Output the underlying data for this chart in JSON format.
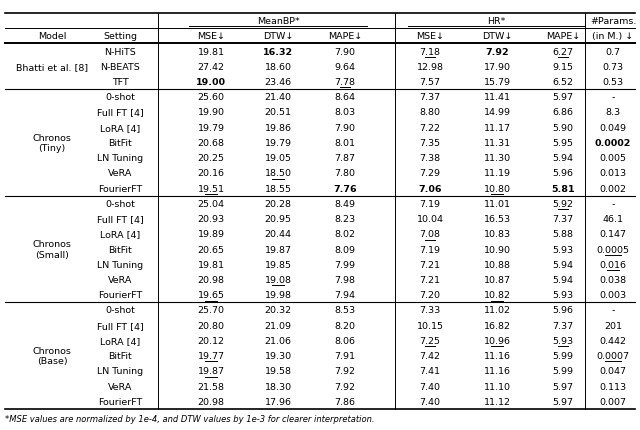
{
  "footnote": "*MSE values are normalized by 1e-4, and DTW values by 1e-3 for clearer interpretation.",
  "header_row1_labels": [
    "MeanBP*",
    "HR*",
    "#Params."
  ],
  "header_row2": [
    "Model",
    "Setting",
    "MSE↓",
    "DTW↓",
    "MAPE↓",
    "MSE↓",
    "DTW↓",
    "MAPE↓",
    "(in M.) ↓"
  ],
  "groups": [
    {
      "model": "Bhatti et al. [8]",
      "rows": [
        {
          "setting": "N-HiTS",
          "vals": [
            "19.81",
            "16.32",
            "7.90",
            "7.18",
            "7.92",
            "6.27",
            "0.7"
          ]
        },
        {
          "setting": "N-BEATS",
          "vals": [
            "27.42",
            "18.60",
            "9.64",
            "12.98",
            "17.90",
            "9.15",
            "0.73"
          ]
        },
        {
          "setting": "TFT",
          "vals": [
            "19.00",
            "23.46",
            "7.78",
            "7.57",
            "15.79",
            "6.52",
            "0.53"
          ]
        }
      ],
      "bold": [
        [
          false,
          true,
          false,
          false,
          true,
          false,
          false
        ],
        [
          false,
          false,
          false,
          false,
          false,
          false,
          false
        ],
        [
          true,
          false,
          false,
          false,
          false,
          false,
          false
        ]
      ],
      "underline": [
        [
          false,
          false,
          false,
          true,
          false,
          true,
          false
        ],
        [
          false,
          false,
          false,
          false,
          false,
          false,
          false
        ],
        [
          false,
          false,
          true,
          false,
          false,
          false,
          false
        ]
      ]
    },
    {
      "model": "Chronos\n(Tiny)",
      "rows": [
        {
          "setting": "0-shot",
          "vals": [
            "25.60",
            "21.40",
            "8.64",
            "7.37",
            "11.41",
            "5.97",
            "-"
          ]
        },
        {
          "setting": "Full FT [4]",
          "vals": [
            "19.90",
            "20.51",
            "8.03",
            "8.80",
            "14.99",
            "6.86",
            "8.3"
          ]
        },
        {
          "setting": "LoRA [4]",
          "vals": [
            "19.79",
            "19.86",
            "7.90",
            "7.22",
            "11.17",
            "5.90",
            "0.049"
          ]
        },
        {
          "setting": "BitFit",
          "vals": [
            "20.68",
            "19.79",
            "8.01",
            "7.35",
            "11.31",
            "5.95",
            "0.0002"
          ]
        },
        {
          "setting": "LN Tuning",
          "vals": [
            "20.25",
            "19.05",
            "7.87",
            "7.38",
            "11.30",
            "5.94",
            "0.005"
          ]
        },
        {
          "setting": "VeRA",
          "vals": [
            "20.16",
            "18.50",
            "7.80",
            "7.29",
            "11.19",
            "5.96",
            "0.013"
          ]
        },
        {
          "setting": "FourierFT",
          "vals": [
            "19.51",
            "18.55",
            "7.76",
            "7.06",
            "10.80",
            "5.81",
            "0.002"
          ]
        }
      ],
      "bold": [
        [
          false,
          false,
          false,
          false,
          false,
          false,
          false
        ],
        [
          false,
          false,
          false,
          false,
          false,
          false,
          false
        ],
        [
          false,
          false,
          false,
          false,
          false,
          false,
          false
        ],
        [
          false,
          false,
          false,
          false,
          false,
          false,
          true
        ],
        [
          false,
          false,
          false,
          false,
          false,
          false,
          false
        ],
        [
          false,
          false,
          false,
          false,
          false,
          false,
          false
        ],
        [
          false,
          false,
          true,
          true,
          false,
          true,
          false
        ]
      ],
      "underline": [
        [
          false,
          false,
          false,
          false,
          false,
          false,
          false
        ],
        [
          false,
          false,
          false,
          false,
          false,
          false,
          false
        ],
        [
          false,
          false,
          false,
          false,
          false,
          false,
          false
        ],
        [
          false,
          false,
          false,
          false,
          false,
          false,
          false
        ],
        [
          false,
          false,
          false,
          false,
          false,
          false,
          false
        ],
        [
          false,
          true,
          false,
          false,
          false,
          false,
          false
        ],
        [
          true,
          false,
          false,
          false,
          true,
          false,
          false
        ]
      ]
    },
    {
      "model": "Chronos\n(Small)",
      "rows": [
        {
          "setting": "0-shot",
          "vals": [
            "25.04",
            "20.28",
            "8.49",
            "7.19",
            "11.01",
            "5.92",
            "-"
          ]
        },
        {
          "setting": "Full FT [4]",
          "vals": [
            "20.93",
            "20.95",
            "8.23",
            "10.04",
            "16.53",
            "7.37",
            "46.1"
          ]
        },
        {
          "setting": "LoRA [4]",
          "vals": [
            "19.89",
            "20.44",
            "8.02",
            "7.08",
            "10.83",
            "5.88",
            "0.147"
          ]
        },
        {
          "setting": "BitFit",
          "vals": [
            "20.65",
            "19.87",
            "8.09",
            "7.19",
            "10.90",
            "5.93",
            "0.0005"
          ]
        },
        {
          "setting": "LN Tuning",
          "vals": [
            "19.81",
            "19.85",
            "7.99",
            "7.21",
            "10.88",
            "5.94",
            "0.016"
          ]
        },
        {
          "setting": "VeRA",
          "vals": [
            "20.98",
            "19.08",
            "7.98",
            "7.21",
            "10.87",
            "5.94",
            "0.038"
          ]
        },
        {
          "setting": "FourierFT",
          "vals": [
            "19.65",
            "19.98",
            "7.94",
            "7.20",
            "10.82",
            "5.93",
            "0.003"
          ]
        }
      ],
      "bold": [
        [
          false,
          false,
          false,
          false,
          false,
          false,
          false
        ],
        [
          false,
          false,
          false,
          false,
          false,
          false,
          false
        ],
        [
          false,
          false,
          false,
          false,
          false,
          false,
          false
        ],
        [
          false,
          false,
          false,
          false,
          false,
          false,
          false
        ],
        [
          false,
          false,
          false,
          false,
          false,
          false,
          false
        ],
        [
          false,
          false,
          false,
          false,
          false,
          false,
          false
        ],
        [
          false,
          false,
          false,
          false,
          false,
          false,
          false
        ]
      ],
      "underline": [
        [
          false,
          false,
          false,
          false,
          false,
          true,
          false
        ],
        [
          false,
          false,
          false,
          false,
          false,
          false,
          false
        ],
        [
          false,
          false,
          false,
          true,
          false,
          false,
          false
        ],
        [
          false,
          false,
          false,
          false,
          false,
          false,
          true
        ],
        [
          false,
          false,
          false,
          false,
          false,
          false,
          true
        ],
        [
          false,
          true,
          false,
          false,
          false,
          false,
          false
        ],
        [
          true,
          false,
          false,
          false,
          true,
          false,
          false
        ]
      ]
    },
    {
      "model": "Chronos\n(Base)",
      "rows": [
        {
          "setting": "0-shot",
          "vals": [
            "25.70",
            "20.32",
            "8.53",
            "7.33",
            "11.02",
            "5.96",
            "-"
          ]
        },
        {
          "setting": "Full FT [4]",
          "vals": [
            "20.80",
            "21.09",
            "8.20",
            "10.15",
            "16.82",
            "7.37",
            "201"
          ]
        },
        {
          "setting": "LoRA [4]",
          "vals": [
            "20.12",
            "21.06",
            "8.06",
            "7.25",
            "10.96",
            "5.93",
            "0.442"
          ]
        },
        {
          "setting": "BitFit",
          "vals": [
            "19.77",
            "19.30",
            "7.91",
            "7.42",
            "11.16",
            "5.99",
            "0.0007"
          ]
        },
        {
          "setting": "LN Tuning",
          "vals": [
            "19.87",
            "19.58",
            "7.92",
            "7.41",
            "11.16",
            "5.99",
            "0.047"
          ]
        },
        {
          "setting": "VeRA",
          "vals": [
            "21.58",
            "18.30",
            "7.92",
            "7.40",
            "11.10",
            "5.97",
            "0.113"
          ]
        },
        {
          "setting": "FourierFT",
          "vals": [
            "20.98",
            "17.96",
            "7.86",
            "7.40",
            "11.12",
            "5.97",
            "0.007"
          ]
        }
      ],
      "bold": [
        [
          false,
          false,
          false,
          false,
          false,
          false,
          false
        ],
        [
          false,
          false,
          false,
          false,
          false,
          false,
          false
        ],
        [
          false,
          false,
          false,
          false,
          false,
          false,
          false
        ],
        [
          false,
          false,
          false,
          false,
          false,
          false,
          false
        ],
        [
          false,
          false,
          false,
          false,
          false,
          false,
          false
        ],
        [
          false,
          false,
          false,
          false,
          false,
          false,
          false
        ],
        [
          false,
          false,
          false,
          false,
          false,
          false,
          false
        ]
      ],
      "underline": [
        [
          false,
          false,
          false,
          false,
          false,
          false,
          false
        ],
        [
          false,
          false,
          false,
          false,
          false,
          false,
          false
        ],
        [
          false,
          false,
          false,
          true,
          true,
          true,
          false
        ],
        [
          true,
          false,
          false,
          false,
          false,
          false,
          true
        ],
        [
          true,
          false,
          false,
          false,
          false,
          false,
          false
        ],
        [
          false,
          false,
          false,
          false,
          false,
          false,
          false
        ],
        [
          false,
          false,
          false,
          false,
          false,
          false,
          false
        ]
      ]
    }
  ]
}
